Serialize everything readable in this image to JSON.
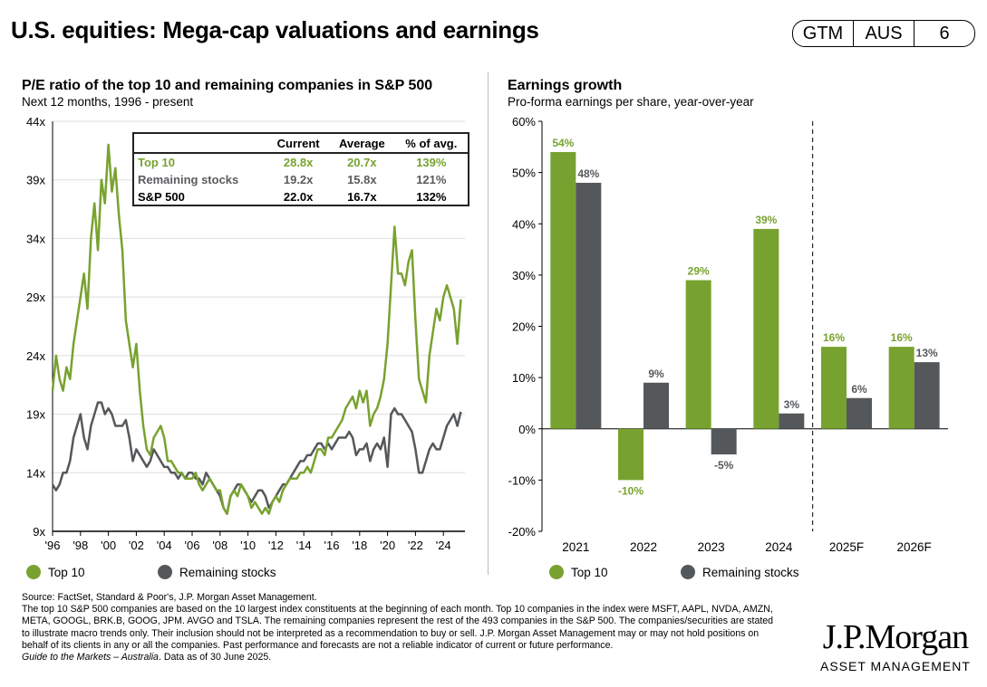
{
  "header": {
    "title": "U.S. equities: Mega-cap valuations and earnings",
    "tags": [
      "GTM",
      "AUS",
      "6"
    ]
  },
  "colors": {
    "green": "#78a22f",
    "grey": "#55585b"
  },
  "pe_table": {
    "headers": [
      "",
      "Current",
      "Average",
      "% of avg."
    ],
    "rows": [
      [
        "Top 10",
        "28.8x",
        "20.7x",
        "139%"
      ],
      [
        "Remaining stocks",
        "19.2x",
        "15.8x",
        "121%"
      ],
      [
        "S&P 500",
        "22.0x",
        "16.7x",
        "132%"
      ]
    ]
  },
  "chart_data": [
    {
      "type": "line",
      "title": "P/E ratio of the top 10 and remaining companies in S&P 500",
      "subtitle": "Next 12 months, 1996 - present",
      "x_start": 1996.0,
      "x_step": 0.25,
      "ylim": [
        9,
        44
      ],
      "yticks": [
        "9x",
        "14x",
        "19x",
        "24x",
        "29x",
        "34x",
        "39x",
        "44x"
      ],
      "ytick_values": [
        9,
        14,
        19,
        24,
        29,
        34,
        39,
        44
      ],
      "xticks": [
        "'96",
        "'98",
        "'00",
        "'02",
        "'04",
        "'06",
        "'08",
        "'10",
        "'12",
        "'14",
        "'16",
        "'18",
        "'20",
        "'22",
        "'24"
      ],
      "legend": [
        "Top 10",
        "Remaining stocks"
      ],
      "series": [
        {
          "name": "Top 10",
          "values": [
            21,
            24,
            22,
            21,
            23,
            22,
            25,
            27,
            29,
            31,
            28,
            34,
            37,
            33,
            39,
            37,
            42,
            38,
            40,
            36,
            33,
            27,
            25,
            23,
            25,
            21,
            18,
            16,
            15.5,
            17,
            17.5,
            18,
            17,
            15,
            15,
            14.5,
            14,
            14,
            13.5,
            13.5,
            13.5,
            14,
            13,
            12.5,
            13,
            13.5,
            13,
            12.5,
            12.5,
            11,
            10.5,
            12,
            12.5,
            12,
            13,
            12.5,
            12,
            11,
            11.5,
            11,
            10.5,
            11,
            10.5,
            11.5,
            12,
            11.5,
            12.5,
            13,
            13.5,
            13.5,
            13.5,
            14,
            14,
            14.5,
            14,
            15,
            16,
            16,
            15.5,
            17,
            17,
            17.5,
            18,
            18.5,
            19.5,
            20,
            20.5,
            19.5,
            21,
            20,
            21,
            18,
            19,
            19.5,
            20.5,
            22,
            25,
            30,
            35,
            31,
            31,
            30,
            32,
            33,
            27,
            22,
            21,
            20,
            24,
            26,
            28,
            27,
            29,
            30,
            29,
            28,
            25,
            28.8
          ]
        },
        {
          "name": "Remaining stocks",
          "values": [
            13,
            12.5,
            13,
            14,
            14,
            15,
            17,
            18,
            19,
            17,
            16,
            18,
            19,
            20,
            20,
            19,
            19.5,
            19,
            18,
            18,
            18,
            18.5,
            17,
            15,
            16,
            15.5,
            15,
            14.5,
            15,
            16,
            15.5,
            15,
            14.5,
            14.5,
            14,
            14,
            13.5,
            14,
            13.5,
            14,
            14,
            13.5,
            13.5,
            13,
            14,
            13.5,
            13,
            12.5,
            12,
            11,
            10.5,
            12,
            12.5,
            13,
            13,
            12.5,
            12,
            11.5,
            12,
            12.5,
            12.5,
            12,
            11,
            11.5,
            12,
            12.5,
            13,
            13,
            13.5,
            14,
            14.5,
            15,
            15,
            15.5,
            15.5,
            16,
            16.5,
            16.5,
            16,
            16.5,
            16,
            16.5,
            17,
            17,
            17,
            17.5,
            17,
            15.5,
            16,
            16,
            16.5,
            15,
            16,
            16.5,
            16,
            17,
            14.5,
            19,
            19.5,
            19,
            19,
            18.5,
            18,
            17.5,
            16,
            14,
            14,
            15,
            16,
            16.5,
            16,
            16,
            17,
            18,
            18.5,
            19,
            18,
            19.2
          ]
        }
      ]
    },
    {
      "type": "bar",
      "title": "Earnings growth",
      "subtitle": "Pro-forma earnings per share, year-over-year",
      "categories": [
        "2021",
        "2022",
        "2023",
        "2024",
        "2025F",
        "2026F"
      ],
      "ylim": [
        -20,
        60
      ],
      "yticks": [
        "-20%",
        "-10%",
        "0%",
        "10%",
        "20%",
        "30%",
        "40%",
        "50%",
        "60%"
      ],
      "ytick_values": [
        -20,
        -10,
        0,
        10,
        20,
        30,
        40,
        50,
        60
      ],
      "legend": [
        "Top 10",
        "Remaining stocks"
      ],
      "series": [
        {
          "name": "Top 10",
          "values": [
            54,
            -10,
            29,
            39,
            16,
            16
          ],
          "labels": [
            "54%",
            "-10%",
            "29%",
            "39%",
            "16%",
            "16%"
          ]
        },
        {
          "name": "Remaining stocks",
          "values": [
            48,
            9,
            -5,
            3,
            6,
            13
          ],
          "labels": [
            "48%",
            "9%",
            "-5%",
            "3%",
            "6%",
            "13%"
          ]
        }
      ],
      "forecast_divider_after": "2024"
    }
  ],
  "footer": {
    "source": "Source: FactSet, Standard & Poor's, J.P. Morgan Asset Management.",
    "note": "The top 10 S&P 500 companies are based on the 10 largest index constituents at the beginning of each month. Top 10 companies in the index were MSFT, AAPL, NVDA, AMZN, META, GOOGL, BRK.B, GOOG, JPM. AVGO and TSLA. The remaining companies represent the rest of the 493 companies in the S&P 500. The companies/securities are stated to illustrate macro trends only. Their inclusion should not be interpreted as a recommendation to buy or sell. J.P. Morgan Asset Management may or may not hold positions on behalf of its clients in any or all the companies. Past performance and forecasts are not a reliable indicator of current or future performance.",
    "guide": "Guide to the Markets – Australia",
    "asof": ". Data as of 30 June 2025."
  },
  "logo": {
    "name": "J.P.Morgan",
    "sub": "ASSET MANAGEMENT"
  }
}
